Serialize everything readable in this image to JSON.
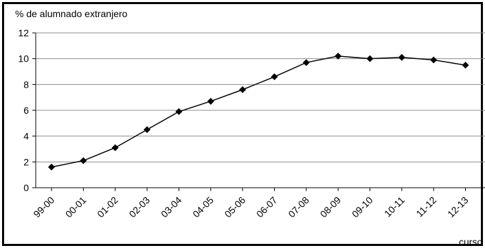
{
  "chart_data": {
    "type": "line",
    "ylabel": "% de alumnado extranjero",
    "xlabel": "curso",
    "categories": [
      "99-00",
      "00-01",
      "01-02",
      "02-03",
      "03-04",
      "04-05",
      "05-06",
      "06-07",
      "07-08",
      "08-09",
      "09-10",
      "10-11",
      "11-12",
      "12-13"
    ],
    "series": [
      {
        "values": [
          1.6,
          2.1,
          3.1,
          4.5,
          5.9,
          6.7,
          7.6,
          8.6,
          9.7,
          10.2,
          10.0,
          10.1,
          9.9,
          9.5
        ],
        "color": "#000000",
        "marker": "diamond"
      }
    ],
    "ylim": [
      0,
      12
    ],
    "yticks": [
      0,
      2,
      4,
      6,
      8,
      10,
      12
    ],
    "grid": true,
    "gridColor": "#8c8c8c",
    "legend": "none"
  }
}
